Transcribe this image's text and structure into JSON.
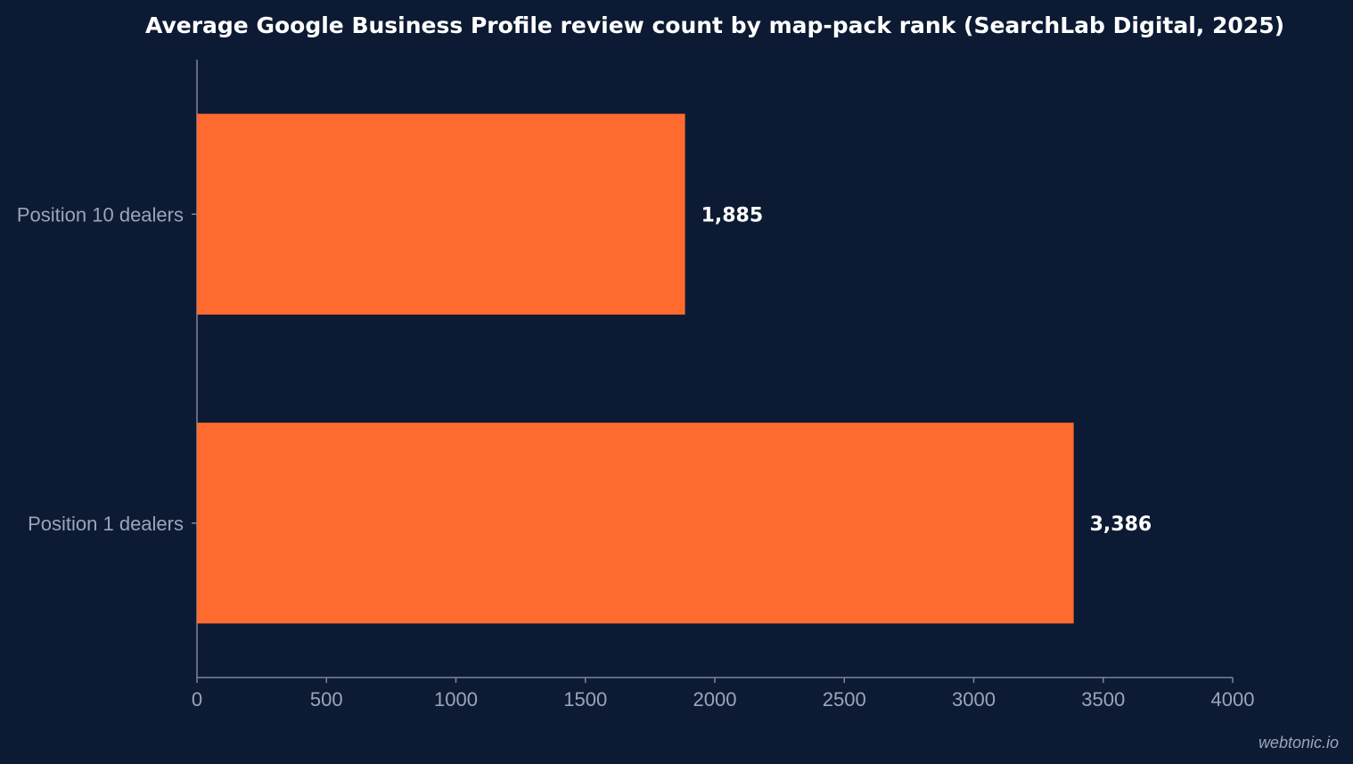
{
  "chart_data": {
    "type": "bar",
    "orientation": "horizontal",
    "title": "Average Google Business Profile review count by map-pack rank (SearchLab Digital, 2025)",
    "xlabel": "",
    "ylabel": "",
    "categories": [
      "Position 10 dealers",
      "Position 1 dealers"
    ],
    "values": [
      1885,
      3386
    ],
    "value_labels": [
      "1,885",
      "3,386"
    ],
    "xlim": [
      0,
      4000
    ],
    "xticks": [
      0,
      500,
      1000,
      1500,
      2000,
      2500,
      3000,
      3500,
      4000
    ],
    "grid": false,
    "legend": "none",
    "bar_color": "#ff6b2f",
    "background_color": "#0c1b33"
  },
  "watermark": "webtonic.io"
}
